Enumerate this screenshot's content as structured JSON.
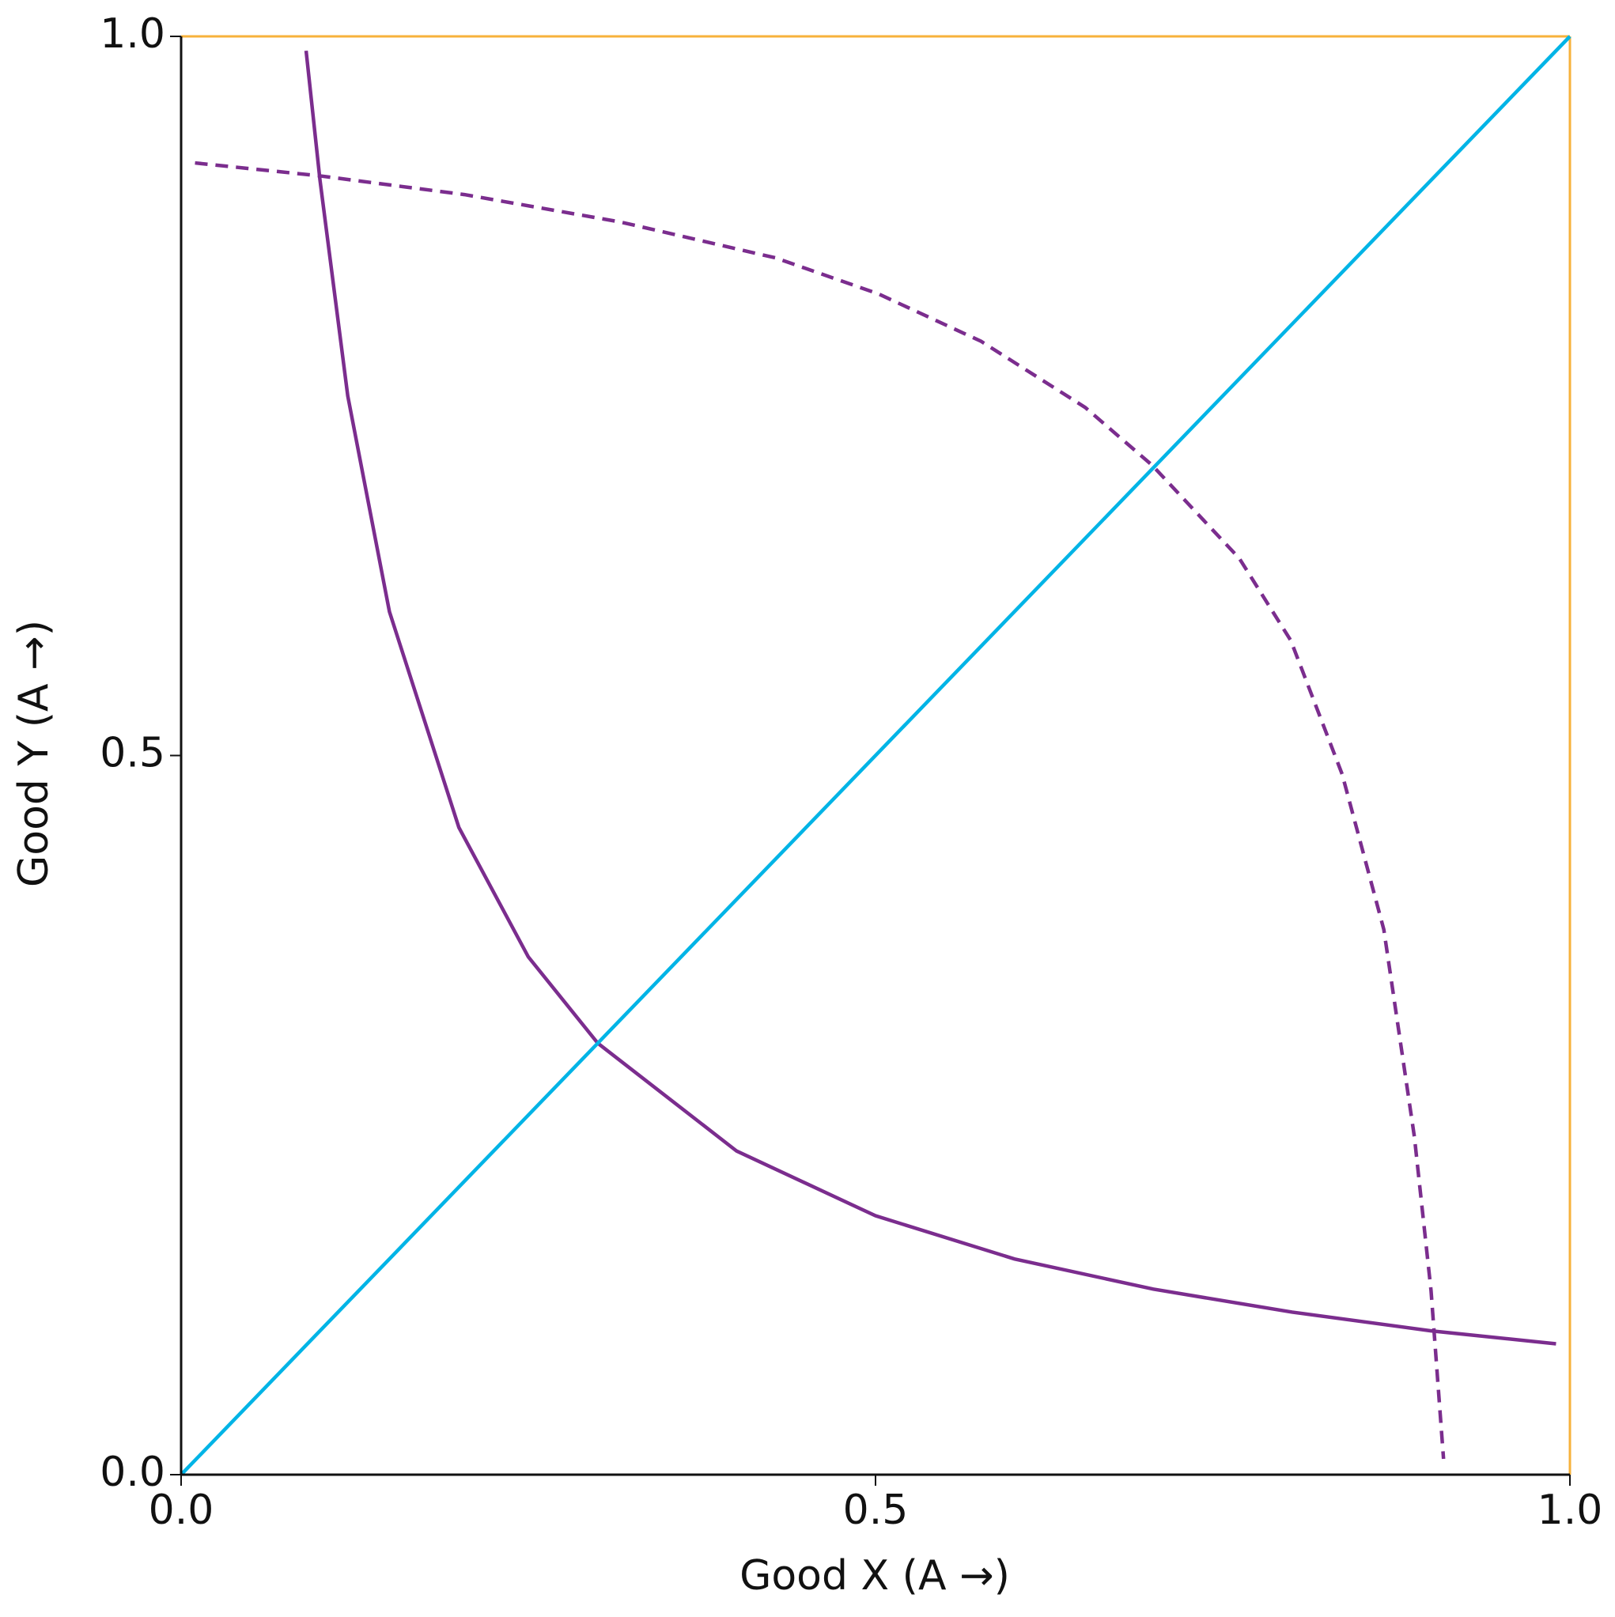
{
  "chart_data": {
    "type": "line",
    "x_label": "Good X (A →)",
    "y_label": "Good Y (A →)",
    "xlim": [
      0,
      1
    ],
    "ylim": [
      0,
      1
    ],
    "xticks": [
      {
        "value": 0,
        "label": "0.0"
      },
      {
        "value": 0.5,
        "label": "0.5"
      },
      {
        "value": 1,
        "label": "1.0"
      }
    ],
    "yticks": [
      {
        "value": 0,
        "label": "0.0"
      },
      {
        "value": 0.5,
        "label": "0.5"
      },
      {
        "value": 1,
        "label": "1.0"
      }
    ],
    "grid": false,
    "axis_color": "#111111",
    "frame_color": "#f7b23b",
    "series": [
      {
        "color": "#7b2d8e",
        "dashed": false,
        "x": [
          0.09,
          0.1,
          0.12,
          0.15,
          0.2,
          0.25,
          0.3,
          0.4,
          0.5,
          0.6,
          0.7,
          0.8,
          0.9,
          0.99
        ],
        "values": [
          0.99,
          0.9,
          0.75,
          0.6,
          0.45,
          0.36,
          0.3,
          0.225,
          0.18,
          0.15,
          0.129,
          0.113,
          0.1,
          0.091
        ]
      },
      {
        "color": "#7b2d8e",
        "dashed": true,
        "x": [
          0.01,
          0.1,
          0.204,
          0.316,
          0.428,
          0.502,
          0.576,
          0.651,
          0.699,
          0.762,
          0.799,
          0.836,
          0.866,
          0.888,
          0.9,
          0.909
        ],
        "values": [
          0.912,
          0.903,
          0.89,
          0.871,
          0.846,
          0.821,
          0.788,
          0.742,
          0.702,
          0.637,
          0.58,
          0.487,
          0.379,
          0.235,
          0.128,
          0.011
        ]
      },
      {
        "color": "#00b4e6",
        "dashed": false,
        "x": [
          0,
          1
        ],
        "values": [
          0,
          1
        ]
      }
    ]
  }
}
